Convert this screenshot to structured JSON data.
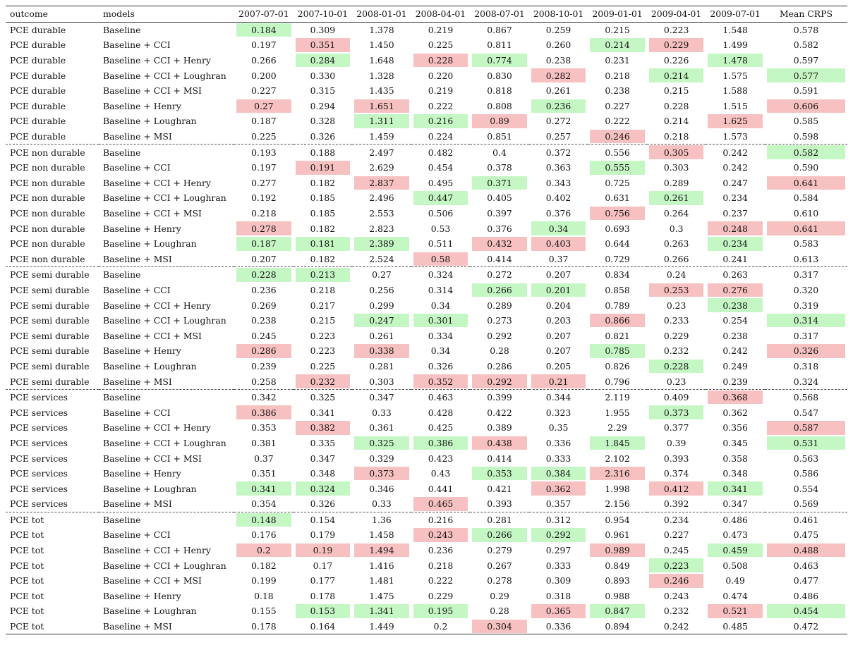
{
  "colors": {
    "best": "#c5f7c4",
    "worst": "#f8c1c1"
  },
  "headers": [
    "outcome",
    "models",
    "2007-07-01",
    "2007-10-01",
    "2008-01-01",
    "2008-04-01",
    "2008-07-01",
    "2008-10-01",
    "2009-01-01",
    "2009-04-01",
    "2009-07-01",
    "Mean CRPS"
  ],
  "rows": [
    {
      "outcome": "PCE durable",
      "model": "Baseline",
      "values": [
        "0.184",
        "0.309",
        "1.378",
        "0.219",
        "0.867",
        "0.259",
        "0.215",
        "0.223",
        "1.548",
        "0.578"
      ],
      "marks": [
        "g",
        "",
        "",
        "",
        "",
        "",
        "",
        "",
        "",
        ""
      ]
    },
    {
      "outcome": "PCE durable",
      "model": "Baseline + CCI",
      "values": [
        "0.197",
        "0.351",
        "1.450",
        "0.225",
        "0.811",
        "0.260",
        "0.214",
        "0.229",
        "1.499",
        "0.582"
      ],
      "marks": [
        "",
        "r",
        "",
        "",
        "",
        "",
        "g",
        "r",
        "",
        ""
      ]
    },
    {
      "outcome": "PCE durable",
      "model": "Baseline + CCI + Henry",
      "values": [
        "0.266",
        "0.284",
        "1.648",
        "0.228",
        "0.774",
        "0.238",
        "0.231",
        "0.226",
        "1.478",
        "0.597"
      ],
      "marks": [
        "",
        "g",
        "",
        "r",
        "g",
        "",
        "",
        "",
        "g",
        ""
      ]
    },
    {
      "outcome": "PCE durable",
      "model": "Baseline + CCI + Loughran",
      "values": [
        "0.200",
        "0.330",
        "1.328",
        "0.220",
        "0.830",
        "0.282",
        "0.218",
        "0.214",
        "1.575",
        "0.577"
      ],
      "marks": [
        "",
        "",
        "",
        "",
        "",
        "r",
        "",
        "g",
        "",
        "g"
      ]
    },
    {
      "outcome": "PCE durable",
      "model": "Baseline + CCI + MSI",
      "values": [
        "0.227",
        "0.315",
        "1.435",
        "0.219",
        "0.818",
        "0.261",
        "0.238",
        "0.215",
        "1.588",
        "0.591"
      ],
      "marks": [
        "",
        "",
        "",
        "",
        "",
        "",
        "",
        "",
        "",
        ""
      ]
    },
    {
      "outcome": "PCE durable",
      "model": "Baseline + Henry",
      "values": [
        "0.27",
        "0.294",
        "1.651",
        "0.222",
        "0.808",
        "0.236",
        "0.227",
        "0.228",
        "1.515",
        "0.606"
      ],
      "marks": [
        "r",
        "",
        "r",
        "",
        "",
        "g",
        "",
        "",
        "",
        "r"
      ]
    },
    {
      "outcome": "PCE durable",
      "model": "Baseline + Loughran",
      "values": [
        "0.187",
        "0.328",
        "1.311",
        "0.216",
        "0.89",
        "0.272",
        "0.222",
        "0.214",
        "1.625",
        "0.585"
      ],
      "marks": [
        "",
        "",
        "g",
        "g",
        "r",
        "",
        "",
        "",
        "r",
        ""
      ]
    },
    {
      "outcome": "PCE durable",
      "model": "Baseline + MSI",
      "values": [
        "0.225",
        "0.326",
        "1.459",
        "0.224",
        "0.851",
        "0.257",
        "0.246",
        "0.218",
        "1.573",
        "0.598"
      ],
      "marks": [
        "",
        "",
        "",
        "",
        "",
        "",
        "r",
        "",
        "",
        ""
      ]
    },
    {
      "outcome": "PCE non durable",
      "model": "Baseline",
      "values": [
        "0.193",
        "0.188",
        "2.497",
        "0.482",
        "0.4",
        "0.372",
        "0.556",
        "0.305",
        "0.242",
        "0.582"
      ],
      "marks": [
        "",
        "",
        "",
        "",
        "",
        "",
        "",
        "r",
        "",
        "g"
      ]
    },
    {
      "outcome": "PCE non durable",
      "model": "Baseline + CCI",
      "values": [
        "0.197",
        "0.191",
        "2.629",
        "0.454",
        "0.378",
        "0.363",
        "0.555",
        "0.303",
        "0.242",
        "0.590"
      ],
      "marks": [
        "",
        "r",
        "",
        "",
        "",
        "",
        "g",
        "",
        "",
        ""
      ]
    },
    {
      "outcome": "PCE non durable",
      "model": "Baseline + CCI + Henry",
      "values": [
        "0.277",
        "0.182",
        "2.837",
        "0.495",
        "0.371",
        "0.343",
        "0.725",
        "0.289",
        "0.247",
        "0.641"
      ],
      "marks": [
        "",
        "",
        "r",
        "",
        "g",
        "",
        "",
        "",
        "",
        "r"
      ]
    },
    {
      "outcome": "PCE non durable",
      "model": "Baseline + CCI + Loughran",
      "values": [
        "0.192",
        "0.185",
        "2.496",
        "0.447",
        "0.405",
        "0.402",
        "0.631",
        "0.261",
        "0.234",
        "0.584"
      ],
      "marks": [
        "",
        "",
        "",
        "g",
        "",
        "",
        "",
        "g",
        "",
        ""
      ]
    },
    {
      "outcome": "PCE non durable",
      "model": "Baseline + CCI + MSI",
      "values": [
        "0.218",
        "0.185",
        "2.553",
        "0.506",
        "0.397",
        "0.376",
        "0.756",
        "0.264",
        "0.237",
        "0.610"
      ],
      "marks": [
        "",
        "",
        "",
        "",
        "",
        "",
        "r",
        "",
        "",
        ""
      ]
    },
    {
      "outcome": "PCE non durable",
      "model": "Baseline + Henry",
      "values": [
        "0.278",
        "0.182",
        "2.823",
        "0.53",
        "0.376",
        "0.34",
        "0.693",
        "0.3",
        "0.248",
        "0.641"
      ],
      "marks": [
        "r",
        "",
        "",
        "",
        "",
        "g",
        "",
        "",
        "r",
        "r"
      ]
    },
    {
      "outcome": "PCE non durable",
      "model": "Baseline + Loughran",
      "values": [
        "0.187",
        "0.181",
        "2.389",
        "0.511",
        "0.432",
        "0.403",
        "0.644",
        "0.263",
        "0.234",
        "0.583"
      ],
      "marks": [
        "g",
        "g",
        "g",
        "",
        "r",
        "r",
        "",
        "",
        "g",
        ""
      ]
    },
    {
      "outcome": "PCE non durable",
      "model": "Baseline + MSI",
      "values": [
        "0.207",
        "0.182",
        "2.524",
        "0.58",
        "0.414",
        "0.37",
        "0.729",
        "0.266",
        "0.241",
        "0.613"
      ],
      "marks": [
        "",
        "",
        "",
        "r",
        "",
        "",
        "",
        "",
        "",
        ""
      ]
    },
    {
      "outcome": "PCE semi durable",
      "model": "Baseline",
      "values": [
        "0.228",
        "0.213",
        "0.27",
        "0.324",
        "0.272",
        "0.207",
        "0.834",
        "0.24",
        "0.263",
        "0.317"
      ],
      "marks": [
        "g",
        "g",
        "",
        "",
        "",
        "",
        "",
        "",
        "",
        ""
      ]
    },
    {
      "outcome": "PCE semi durable",
      "model": "Baseline + CCI",
      "values": [
        "0.236",
        "0.218",
        "0.256",
        "0.314",
        "0.266",
        "0.201",
        "0.858",
        "0.253",
        "0.276",
        "0.320"
      ],
      "marks": [
        "",
        "",
        "",
        "",
        "g",
        "g",
        "",
        "r",
        "r",
        ""
      ]
    },
    {
      "outcome": "PCE semi durable",
      "model": "Baseline + CCI + Henry",
      "values": [
        "0.269",
        "0.217",
        "0.299",
        "0.34",
        "0.289",
        "0.204",
        "0.789",
        "0.23",
        "0.238",
        "0.319"
      ],
      "marks": [
        "",
        "",
        "",
        "",
        "",
        "",
        "",
        "",
        "g",
        ""
      ]
    },
    {
      "outcome": "PCE semi durable",
      "model": "Baseline + CCI + Loughran",
      "values": [
        "0.238",
        "0.215",
        "0.247",
        "0.301",
        "0.273",
        "0.203",
        "0.866",
        "0.233",
        "0.254",
        "0.314"
      ],
      "marks": [
        "",
        "",
        "g",
        "g",
        "",
        "",
        "r",
        "",
        "",
        "g"
      ]
    },
    {
      "outcome": "PCE semi durable",
      "model": "Baseline + CCI + MSI",
      "values": [
        "0.245",
        "0.223",
        "0.261",
        "0.334",
        "0.292",
        "0.207",
        "0.821",
        "0.229",
        "0.238",
        "0.317"
      ],
      "marks": [
        "",
        "",
        "",
        "",
        "",
        "",
        "",
        "",
        "",
        ""
      ]
    },
    {
      "outcome": "PCE semi durable",
      "model": "Baseline + Henry",
      "values": [
        "0.286",
        "0.223",
        "0.338",
        "0.34",
        "0.28",
        "0.207",
        "0.785",
        "0.232",
        "0.242",
        "0.326"
      ],
      "marks": [
        "r",
        "",
        "r",
        "",
        "",
        "",
        "g",
        "",
        "",
        "r"
      ]
    },
    {
      "outcome": "PCE semi durable",
      "model": "Baseline + Loughran",
      "values": [
        "0.239",
        "0.225",
        "0.281",
        "0.326",
        "0.286",
        "0.205",
        "0.826",
        "0.228",
        "0.249",
        "0.318"
      ],
      "marks": [
        "",
        "",
        "",
        "",
        "",
        "",
        "",
        "g",
        "",
        ""
      ]
    },
    {
      "outcome": "PCE semi durable",
      "model": "Baseline + MSI",
      "values": [
        "0.258",
        "0.232",
        "0.303",
        "0.352",
        "0.292",
        "0.21",
        "0.796",
        "0.23",
        "0.239",
        "0.324"
      ],
      "marks": [
        "",
        "r",
        "",
        "r",
        "r",
        "r",
        "",
        "",
        "",
        ""
      ]
    },
    {
      "outcome": "PCE services",
      "model": "Baseline",
      "values": [
        "0.342",
        "0.325",
        "0.347",
        "0.463",
        "0.399",
        "0.344",
        "2.119",
        "0.409",
        "0.368",
        "0.568"
      ],
      "marks": [
        "",
        "",
        "",
        "",
        "",
        "",
        "",
        "",
        "r",
        ""
      ]
    },
    {
      "outcome": "PCE services",
      "model": "Baseline + CCI",
      "values": [
        "0.386",
        "0.341",
        "0.33",
        "0.428",
        "0.422",
        "0.323",
        "1.955",
        "0.373",
        "0.362",
        "0.547"
      ],
      "marks": [
        "r",
        "",
        "",
        "",
        "",
        "",
        "",
        "g",
        "",
        ""
      ]
    },
    {
      "outcome": "PCE services",
      "model": "Baseline + CCI + Henry",
      "values": [
        "0.353",
        "0.382",
        "0.361",
        "0.425",
        "0.389",
        "0.35",
        "2.29",
        "0.377",
        "0.356",
        "0.587"
      ],
      "marks": [
        "",
        "r",
        "",
        "",
        "",
        "",
        "",
        "",
        "",
        "r"
      ]
    },
    {
      "outcome": "PCE services",
      "model": "Baseline + CCI + Loughran",
      "values": [
        "0.381",
        "0.335",
        "0.325",
        "0.386",
        "0.438",
        "0.336",
        "1.845",
        "0.39",
        "0.345",
        "0.531"
      ],
      "marks": [
        "",
        "",
        "g",
        "g",
        "r",
        "",
        "g",
        "",
        "",
        "g"
      ]
    },
    {
      "outcome": "PCE services",
      "model": "Baseline + CCI + MSI",
      "values": [
        "0.37",
        "0.347",
        "0.329",
        "0.423",
        "0.414",
        "0.333",
        "2.102",
        "0.393",
        "0.358",
        "0.563"
      ],
      "marks": [
        "",
        "",
        "",
        "",
        "",
        "",
        "",
        "",
        "",
        ""
      ]
    },
    {
      "outcome": "PCE services",
      "model": "Baseline + Henry",
      "values": [
        "0.351",
        "0.348",
        "0.373",
        "0.43",
        "0.353",
        "0.384",
        "2.316",
        "0.374",
        "0.348",
        "0.586"
      ],
      "marks": [
        "",
        "",
        "r",
        "",
        "g",
        "g",
        "r",
        "",
        "",
        ""
      ]
    },
    {
      "outcome": "PCE services",
      "model": "Baseline + Loughran",
      "values": [
        "0.341",
        "0.324",
        "0.346",
        "0.441",
        "0.421",
        "0.362",
        "1.998",
        "0.412",
        "0.341",
        "0.554"
      ],
      "marks": [
        "g",
        "g",
        "",
        "",
        "",
        "r",
        "",
        "r",
        "g",
        ""
      ]
    },
    {
      "outcome": "PCE services",
      "model": "Baseline + MSI",
      "values": [
        "0.354",
        "0.326",
        "0.33",
        "0.465",
        "0.393",
        "0.357",
        "2.156",
        "0.392",
        "0.347",
        "0.569"
      ],
      "marks": [
        "",
        "",
        "",
        "r",
        "",
        "",
        "",
        "",
        "",
        ""
      ]
    },
    {
      "outcome": "PCE tot",
      "model": "Baseline",
      "values": [
        "0.148",
        "0.154",
        "1.36",
        "0.216",
        "0.281",
        "0.312",
        "0.954",
        "0.234",
        "0.486",
        "0.461"
      ],
      "marks": [
        "g",
        "",
        "",
        "",
        "",
        "",
        "",
        "",
        "",
        ""
      ]
    },
    {
      "outcome": "PCE tot",
      "model": "Baseline + CCI",
      "values": [
        "0.176",
        "0.179",
        "1.458",
        "0.243",
        "0.266",
        "0.292",
        "0.961",
        "0.227",
        "0.473",
        "0.475"
      ],
      "marks": [
        "",
        "",
        "",
        "r",
        "g",
        "g",
        "",
        "",
        "",
        ""
      ]
    },
    {
      "outcome": "PCE tot",
      "model": "Baseline + CCI + Henry",
      "values": [
        "0.2",
        "0.19",
        "1.494",
        "0.236",
        "0.279",
        "0.297",
        "0.989",
        "0.245",
        "0.459",
        "0.488"
      ],
      "marks": [
        "r",
        "r",
        "r",
        "",
        "",
        "",
        "r",
        "",
        "g",
        "r"
      ]
    },
    {
      "outcome": "PCE tot",
      "model": "Baseline + CCI + Loughran",
      "values": [
        "0.182",
        "0.17",
        "1.416",
        "0.218",
        "0.267",
        "0.333",
        "0.849",
        "0.223",
        "0.508",
        "0.463"
      ],
      "marks": [
        "",
        "",
        "",
        "",
        "",
        "",
        "",
        "g",
        "",
        ""
      ]
    },
    {
      "outcome": "PCE tot",
      "model": "Baseline + CCI + MSI",
      "values": [
        "0.199",
        "0.177",
        "1.481",
        "0.222",
        "0.278",
        "0.309",
        "0.893",
        "0.246",
        "0.49",
        "0.477"
      ],
      "marks": [
        "",
        "",
        "",
        "",
        "",
        "",
        "",
        "r",
        "",
        ""
      ]
    },
    {
      "outcome": "PCE tot",
      "model": "Baseline + Henry",
      "values": [
        "0.18",
        "0.178",
        "1.475",
        "0.229",
        "0.29",
        "0.318",
        "0.988",
        "0.243",
        "0.474",
        "0.486"
      ],
      "marks": [
        "",
        "",
        "",
        "",
        "",
        "",
        "",
        "",
        "",
        ""
      ]
    },
    {
      "outcome": "PCE tot",
      "model": "Baseline + Loughran",
      "values": [
        "0.155",
        "0.153",
        "1.341",
        "0.195",
        "0.28",
        "0.365",
        "0.847",
        "0.232",
        "0.521",
        "0.454"
      ],
      "marks": [
        "",
        "g",
        "g",
        "g",
        "",
        "r",
        "g",
        "",
        "r",
        "g"
      ]
    },
    {
      "outcome": "PCE tot",
      "model": "Baseline + MSI",
      "values": [
        "0.178",
        "0.164",
        "1.449",
        "0.2",
        "0.304",
        "0.336",
        "0.894",
        "0.242",
        "0.485",
        "0.472"
      ],
      "marks": [
        "",
        "",
        "",
        "",
        "r",
        "",
        "",
        "",
        "",
        ""
      ]
    }
  ]
}
